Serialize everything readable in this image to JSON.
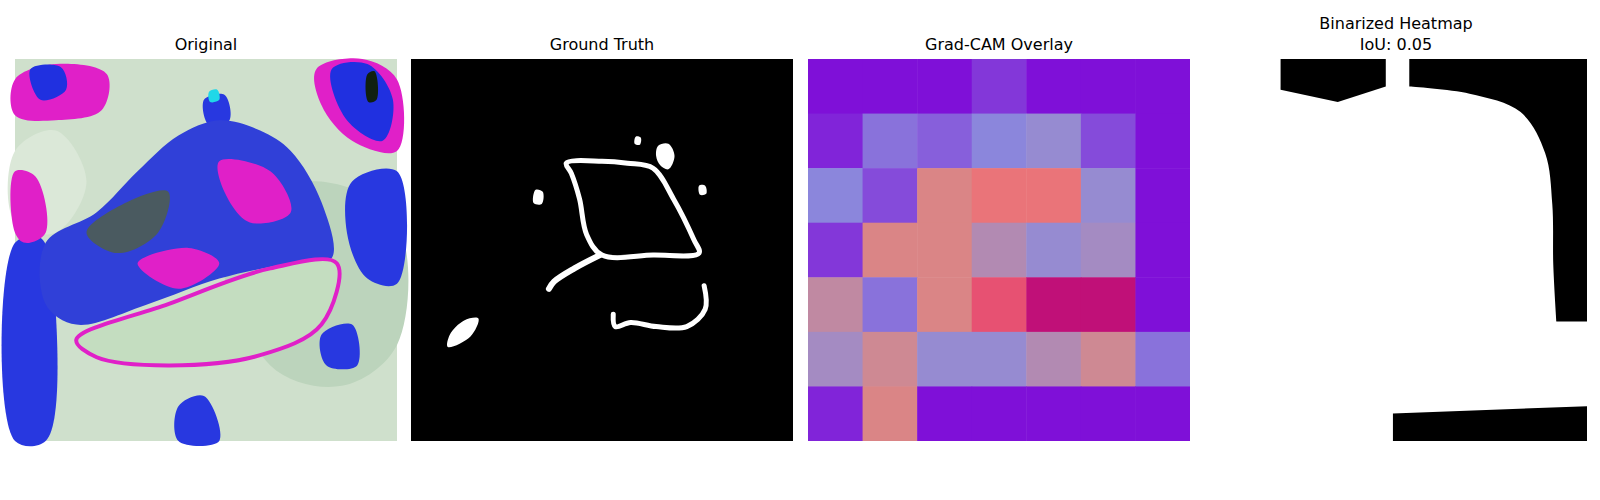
{
  "chart_data": [
    {
      "type": "image",
      "title": "Original"
    },
    {
      "type": "mask",
      "title": "Ground Truth"
    },
    {
      "type": "heatmap",
      "title": "Grad-CAM Overlay",
      "tick_labels": false,
      "cells": [
        [
          0.05,
          0.05,
          0.05,
          0.15,
          0.05,
          0.05,
          0.05
        ],
        [
          0.1,
          0.3,
          0.25,
          0.35,
          0.4,
          0.2,
          0.05
        ],
        [
          0.35,
          0.2,
          0.65,
          0.75,
          0.75,
          0.4,
          0.05
        ],
        [
          0.15,
          0.65,
          0.65,
          0.5,
          0.4,
          0.45,
          0.05
        ],
        [
          0.55,
          0.3,
          0.65,
          0.85,
          0.95,
          0.95,
          0.05
        ],
        [
          0.45,
          0.6,
          0.4,
          0.4,
          0.5,
          0.6,
          0.3
        ],
        [
          0.1,
          0.65,
          0.05,
          0.05,
          0.05,
          0.05,
          0.05
        ]
      ]
    },
    {
      "type": "mask",
      "title": "Binarized Heatmap",
      "subtitle": "IoU: 0.05"
    }
  ]
}
